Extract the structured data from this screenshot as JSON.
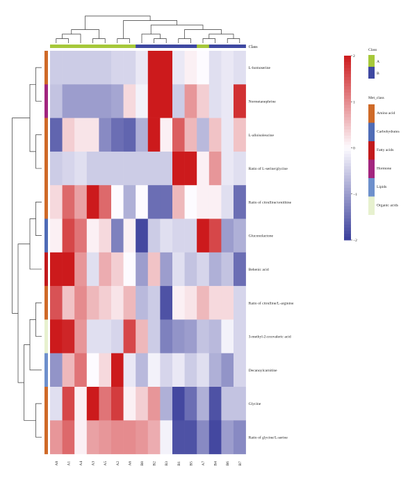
{
  "chart_data": {
    "type": "heatmap",
    "title": "",
    "columns": [
      "A8",
      "A1",
      "A4",
      "A3",
      "A5",
      "A2",
      "A6",
      "B8",
      "B2",
      "B3",
      "B1",
      "B5",
      "A7",
      "B4",
      "B6",
      "B7"
    ],
    "column_class": [
      "A",
      "A",
      "A",
      "A",
      "A",
      "A",
      "A",
      "B",
      "B",
      "B",
      "B",
      "B",
      "A",
      "B",
      "B",
      "B"
    ],
    "rows": [
      "L-homoserine",
      "Normetanephrine",
      "L-alloisoleucine",
      "Ratio of L-serine/glycine",
      "Ratio of citrulline/ornithine",
      "Gluconolactone",
      "Behenic acid",
      "Ratio of citrulline/L-arginine",
      "3-methyl-2-oxovaleric acid",
      "Decanoylcarnitine",
      "Glycine",
      "Ratio of glycine/L-serine"
    ],
    "row_class": [
      "Amino acid",
      "Hormone",
      "Amino acid",
      "Amino acid",
      "Amino acid",
      "Carbohydrates",
      "Fatty acids",
      "Amino acid",
      "Organic acids",
      "Lipids",
      "Amino acid",
      "Amino acid"
    ],
    "values": [
      [
        -0.5,
        -0.5,
        -0.5,
        -0.5,
        -0.5,
        -0.4,
        -0.4,
        -0.2,
        2.0,
        2.0,
        -0.2,
        0.1,
        0.0,
        -0.3,
        -0.2,
        -0.3
      ],
      [
        -0.6,
        -1.0,
        -1.0,
        -1.0,
        -1.0,
        -0.9,
        0.3,
        -0.1,
        2.0,
        2.0,
        -0.5,
        0.9,
        0.4,
        -0.3,
        -0.2,
        1.8
      ],
      [
        -1.6,
        0.4,
        0.2,
        0.2,
        -1.2,
        -1.5,
        -1.6,
        -0.8,
        2.0,
        0.1,
        1.4,
        0.6,
        -0.7,
        0.5,
        -0.2,
        0.5
      ],
      [
        -0.5,
        -0.4,
        -0.3,
        -0.5,
        -0.5,
        -0.5,
        -0.5,
        -0.5,
        -0.5,
        -0.5,
        2.0,
        2.0,
        0.1,
        0.9,
        -0.2,
        -0.3
      ],
      [
        0.3,
        1.3,
        0.8,
        2.0,
        1.3,
        0.0,
        -0.8,
        0.0,
        -1.5,
        -1.5,
        0.6,
        0.0,
        0.1,
        0.1,
        -0.3,
        -1.5
      ],
      [
        0.1,
        1.6,
        1.2,
        0.1,
        0.3,
        -1.3,
        0.1,
        -1.9,
        -0.5,
        -0.3,
        -0.4,
        -0.4,
        2.0,
        1.6,
        -1.0,
        -0.8
      ],
      [
        2.0,
        2.0,
        0.9,
        -0.3,
        0.7,
        0.4,
        0.0,
        -1.0,
        0.5,
        -1.0,
        -0.3,
        -0.6,
        -0.4,
        -0.8,
        -0.6,
        -1.5
      ],
      [
        1.5,
        0.5,
        1.0,
        0.6,
        0.4,
        0.2,
        0.6,
        -0.7,
        -0.5,
        -1.8,
        0.1,
        0.2,
        0.6,
        0.3,
        0.3,
        -0.4
      ],
      [
        2.0,
        1.9,
        0.9,
        -0.3,
        -0.3,
        -0.4,
        1.6,
        0.6,
        -0.5,
        -1.3,
        -1.1,
        -1.0,
        -0.6,
        -0.7,
        -0.1,
        -0.4
      ],
      [
        -1.1,
        0.6,
        1.2,
        0.0,
        0.3,
        2.0,
        -0.2,
        -0.7,
        -0.1,
        -0.4,
        -0.2,
        -0.5,
        -0.3,
        -0.8,
        -1.1,
        -0.4
      ],
      [
        -0.3,
        1.6,
        0.1,
        2.0,
        1.2,
        1.7,
        0.1,
        0.4,
        0.9,
        -0.8,
        -1.9,
        -1.5,
        -0.8,
        -1.8,
        -0.6,
        -0.6
      ],
      [
        0.9,
        1.3,
        0.1,
        0.8,
        0.9,
        1.0,
        1.0,
        0.9,
        0.7,
        -0.1,
        -1.8,
        -1.8,
        -1.2,
        -1.9,
        -1.0,
        -1.2
      ]
    ],
    "color_scale": {
      "min": -2,
      "max": 2,
      "ticks": [
        "2",
        "1",
        "0",
        "−1",
        "−2"
      ],
      "low": "#3a3f9b",
      "mid": "#fdfbff",
      "high": "#cc1a1c"
    },
    "class_colors": {
      "A": "#a6c83a",
      "B": "#3e48a1"
    },
    "met_class_colors": {
      "Amino acid": "#cf6a28",
      "Carbohydrates": "#4f6cb6",
      "Fatty acids": "#c21a1c",
      "Hormone": "#a2257e",
      "Lipids": "#6e90cc",
      "Organic acids": "#e7f1cf"
    },
    "annotation_track_label": "Class",
    "legend": {
      "class_title": "Class",
      "class_items": [
        "A",
        "B"
      ],
      "met_title": "Met_class",
      "met_items": [
        "Amino acid",
        "Carbohydrates",
        "Fatty acids",
        "Hormone",
        "Lipids",
        "Organic acids"
      ]
    },
    "col_tree": [
      [
        7,
        [
          8,
          9
        ]
      ],
      [
        [
          10,
          11
        ],
        [
          [
            12,
            13
          ],
          [
            14,
            15
          ]
        ]
      ]
    ],
    "col_tree_root": [
      [
        [
          [
            0,
            1
          ],
          2
        ],
        [
          3,
          4
        ]
      ],
      [
        [
          5,
          6
        ],
        [
          [
            7,
            [
              8,
              9
            ]
          ],
          [
            [
              10,
              11
            ],
            [
              [
                12,
                13
              ],
              [
                14,
                15
              ]
            ]
          ]
        ]
      ]
    ],
    "row_tree": [
      [
        [
          0,
          1
        ],
        [
          2,
          3
        ]
      ],
      [
        [
          [
            4,
            5
          ],
          6
        ],
        [
          [
            [
              7,
              8
            ],
            9
          ],
          [
            10,
            11
          ]
        ]
      ]
    ]
  }
}
